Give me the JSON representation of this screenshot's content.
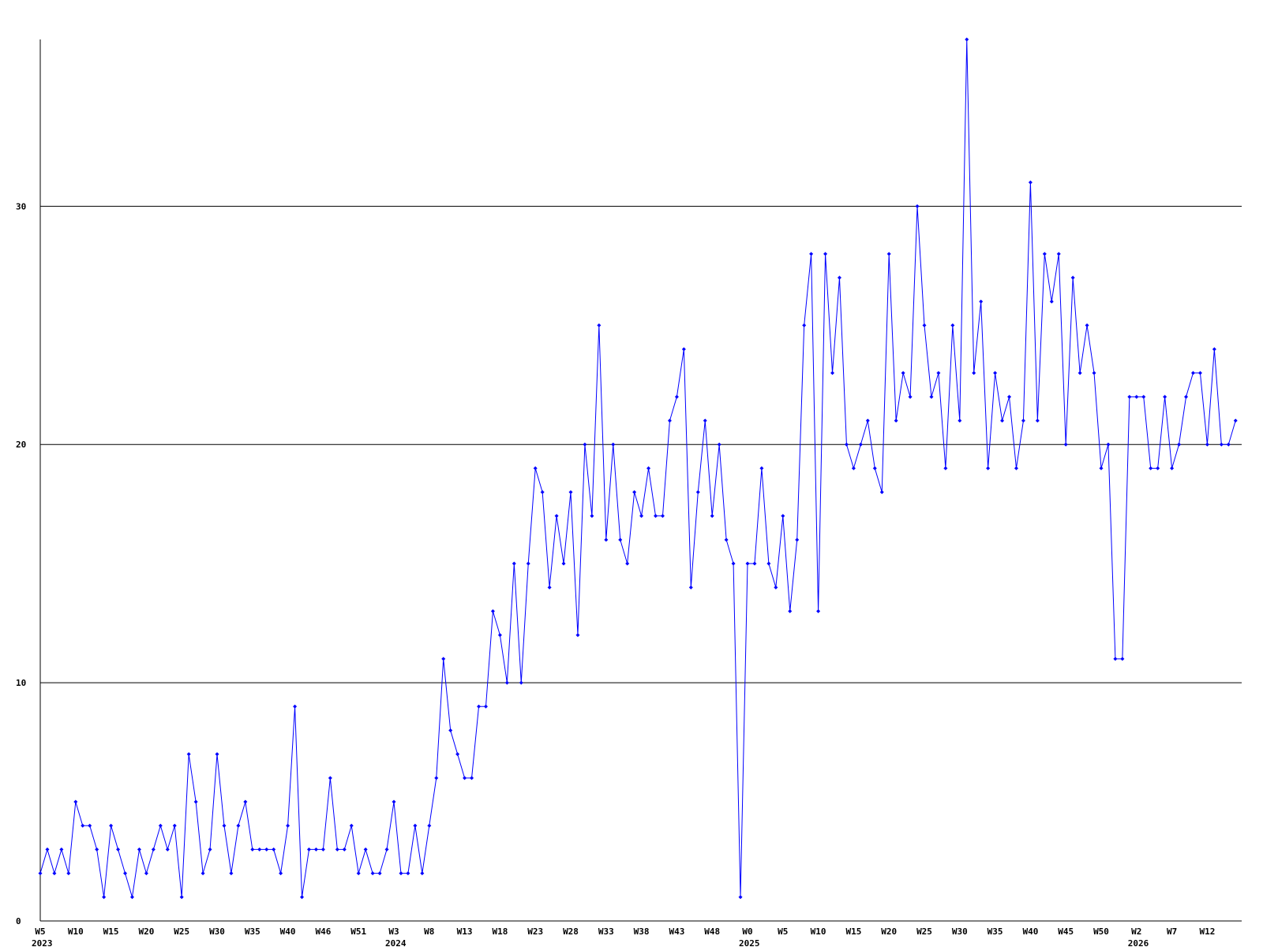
{
  "chart_data": {
    "type": "line",
    "categories": [
      "W5",
      null,
      null,
      null,
      null,
      "W10",
      null,
      null,
      null,
      null,
      "W15",
      null,
      null,
      null,
      null,
      "W20",
      null,
      null,
      null,
      null,
      "W25",
      null,
      null,
      null,
      null,
      "W30",
      null,
      null,
      null,
      null,
      "W35",
      null,
      null,
      null,
      null,
      "W40",
      null,
      null,
      null,
      null,
      "W46",
      null,
      null,
      null,
      null,
      "W51",
      null,
      null,
      null,
      null,
      "W3",
      null,
      null,
      null,
      null,
      "W8",
      null,
      null,
      null,
      null,
      "W13",
      null,
      null,
      null,
      null,
      "W18",
      null,
      null,
      null,
      null,
      "W23",
      null,
      null,
      null,
      null,
      "W28",
      null,
      null,
      null,
      null,
      "W33",
      null,
      null,
      null,
      null,
      "W38",
      null,
      null,
      null,
      null,
      "W43",
      null,
      null,
      null,
      null,
      "W48",
      null,
      null,
      null,
      null,
      "W0",
      null,
      null,
      null,
      null,
      "W5",
      null,
      null,
      null,
      null,
      "W10",
      null,
      null,
      null,
      null,
      "W15",
      null,
      null,
      null,
      null,
      "W20",
      null,
      null,
      null,
      null,
      "W25",
      null,
      null,
      null,
      null,
      "W30",
      null,
      null,
      null,
      null,
      "W35",
      null,
      null,
      null,
      null,
      "W40",
      null,
      null,
      null,
      null,
      "W45",
      null,
      null,
      null,
      null,
      "W50",
      null,
      null,
      null,
      null,
      "W2",
      null,
      null,
      null,
      null,
      "W7",
      null,
      null,
      null,
      null,
      "W12",
      null,
      null,
      null,
      null
    ],
    "category_groups": [
      {
        "label": "2023",
        "start": 0
      },
      {
        "label": "2024",
        "start": 50
      },
      {
        "label": "2025",
        "start": 100
      },
      {
        "label": "2026",
        "start": 155
      }
    ],
    "values": [
      2,
      3,
      2,
      3,
      2,
      5,
      4,
      4,
      3,
      1,
      4,
      3,
      2,
      1,
      3,
      2,
      3,
      4,
      3,
      4,
      1,
      7,
      5,
      2,
      3,
      7,
      4,
      2,
      4,
      5,
      3,
      3,
      3,
      3,
      2,
      4,
      9,
      1,
      3,
      3,
      3,
      6,
      3,
      3,
      4,
      2,
      3,
      2,
      2,
      3,
      5,
      2,
      2,
      4,
      2,
      4,
      6,
      11,
      8,
      7,
      6,
      6,
      9,
      9,
      13,
      12,
      10,
      15,
      10,
      15,
      19,
      18,
      14,
      17,
      15,
      18,
      12,
      20,
      17,
      25,
      16,
      20,
      16,
      15,
      18,
      17,
      19,
      17,
      17,
      21,
      22,
      24,
      14,
      18,
      21,
      17,
      20,
      16,
      15,
      1,
      15,
      15,
      19,
      15,
      14,
      17,
      13,
      16,
      25,
      28,
      13,
      28,
      23,
      27,
      20,
      19,
      20,
      21,
      19,
      18,
      28,
      21,
      23,
      22,
      30,
      25,
      22,
      23,
      19,
      25,
      21,
      37,
      23,
      26,
      19,
      23,
      21,
      22,
      19,
      21,
      31,
      21,
      28,
      26,
      28,
      20,
      27,
      23,
      25,
      23,
      19,
      20,
      11,
      11,
      22,
      22,
      22,
      19,
      19,
      22,
      19,
      20,
      22,
      23,
      23,
      20,
      24,
      20,
      20,
      21
    ],
    "color": "#0000ff",
    "ylim": [
      0,
      37
    ],
    "yticks": [
      0,
      10,
      20,
      30
    ],
    "grid": true
  }
}
